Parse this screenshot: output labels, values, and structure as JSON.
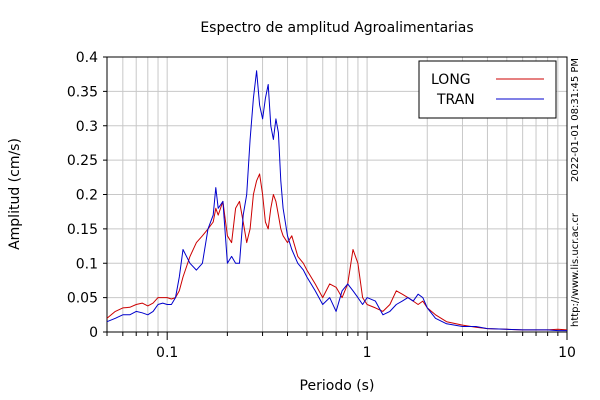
{
  "chart_data": {
    "type": "line",
    "title": "Espectro de amplitud Agroalimentarias",
    "xlabel": "Periodo (s)",
    "ylabel": "Amplitud (cm/s)",
    "x_scale": "log",
    "xlim": [
      0.05,
      10
    ],
    "ylim": [
      0,
      0.4
    ],
    "x_ticks": [
      0.1,
      1,
      10
    ],
    "x_tick_labels": [
      "0.1",
      "1",
      "10"
    ],
    "y_ticks": [
      0,
      0.05,
      0.1,
      0.15,
      0.2,
      0.25,
      0.3,
      0.35,
      0.4
    ],
    "y_tick_labels": [
      "0",
      "0.05",
      "0.1",
      "0.15",
      "0.2",
      "0.25",
      "0.3",
      "0.35",
      "0.4"
    ],
    "grid": true,
    "legend_position": "top-right",
    "side_labels": [
      "2022-01-01 08:31:45 PM",
      "http://www.lis.ucr.ac.cr"
    ],
    "series": [
      {
        "name": "LONG",
        "color": "#cc0000",
        "x": [
          0.05,
          0.055,
          0.06,
          0.065,
          0.07,
          0.075,
          0.08,
          0.085,
          0.09,
          0.095,
          0.1,
          0.105,
          0.11,
          0.115,
          0.12,
          0.13,
          0.14,
          0.15,
          0.16,
          0.17,
          0.175,
          0.18,
          0.19,
          0.2,
          0.21,
          0.22,
          0.23,
          0.24,
          0.25,
          0.26,
          0.27,
          0.28,
          0.29,
          0.3,
          0.31,
          0.32,
          0.33,
          0.34,
          0.35,
          0.36,
          0.37,
          0.38,
          0.4,
          0.42,
          0.45,
          0.48,
          0.5,
          0.55,
          0.6,
          0.65,
          0.7,
          0.75,
          0.8,
          0.85,
          0.9,
          0.95,
          1.0,
          1.1,
          1.2,
          1.3,
          1.4,
          1.5,
          1.6,
          1.7,
          1.8,
          1.9,
          2.0,
          2.2,
          2.5,
          3.0,
          3.5,
          4,
          5,
          6,
          7,
          8,
          9,
          10
        ],
        "values": [
          0.02,
          0.03,
          0.035,
          0.036,
          0.04,
          0.042,
          0.038,
          0.042,
          0.05,
          0.05,
          0.05,
          0.048,
          0.05,
          0.06,
          0.08,
          0.11,
          0.13,
          0.14,
          0.15,
          0.16,
          0.18,
          0.17,
          0.19,
          0.14,
          0.13,
          0.18,
          0.19,
          0.16,
          0.13,
          0.15,
          0.2,
          0.22,
          0.23,
          0.2,
          0.16,
          0.15,
          0.18,
          0.2,
          0.19,
          0.17,
          0.15,
          0.14,
          0.13,
          0.14,
          0.11,
          0.1,
          0.09,
          0.07,
          0.05,
          0.07,
          0.065,
          0.05,
          0.07,
          0.12,
          0.1,
          0.05,
          0.04,
          0.035,
          0.03,
          0.04,
          0.06,
          0.055,
          0.05,
          0.045,
          0.04,
          0.045,
          0.035,
          0.025,
          0.015,
          0.01,
          0.007,
          0.005,
          0.004,
          0.003,
          0.003,
          0.003,
          0.004,
          0.003
        ]
      },
      {
        "name": "TRAN",
        "color": "#0000cc",
        "x": [
          0.05,
          0.055,
          0.06,
          0.065,
          0.07,
          0.075,
          0.08,
          0.085,
          0.09,
          0.095,
          0.1,
          0.105,
          0.11,
          0.115,
          0.12,
          0.13,
          0.14,
          0.15,
          0.16,
          0.17,
          0.175,
          0.18,
          0.19,
          0.2,
          0.21,
          0.22,
          0.23,
          0.24,
          0.25,
          0.26,
          0.27,
          0.28,
          0.29,
          0.3,
          0.31,
          0.32,
          0.33,
          0.34,
          0.35,
          0.36,
          0.37,
          0.38,
          0.4,
          0.42,
          0.45,
          0.48,
          0.5,
          0.55,
          0.6,
          0.65,
          0.7,
          0.75,
          0.8,
          0.85,
          0.9,
          0.95,
          1.0,
          1.1,
          1.2,
          1.3,
          1.4,
          1.5,
          1.6,
          1.7,
          1.8,
          1.9,
          2.0,
          2.2,
          2.5,
          3.0,
          3.5,
          4,
          5,
          6,
          7,
          8,
          9,
          10
        ],
        "values": [
          0.015,
          0.02,
          0.025,
          0.025,
          0.03,
          0.028,
          0.025,
          0.03,
          0.04,
          0.042,
          0.04,
          0.04,
          0.05,
          0.08,
          0.12,
          0.1,
          0.09,
          0.1,
          0.15,
          0.17,
          0.21,
          0.18,
          0.19,
          0.1,
          0.11,
          0.1,
          0.1,
          0.17,
          0.2,
          0.28,
          0.34,
          0.38,
          0.33,
          0.31,
          0.34,
          0.36,
          0.3,
          0.28,
          0.31,
          0.29,
          0.22,
          0.18,
          0.14,
          0.12,
          0.1,
          0.09,
          0.08,
          0.06,
          0.04,
          0.05,
          0.03,
          0.06,
          0.07,
          0.06,
          0.05,
          0.04,
          0.05,
          0.045,
          0.025,
          0.03,
          0.04,
          0.045,
          0.05,
          0.045,
          0.055,
          0.05,
          0.035,
          0.02,
          0.012,
          0.008,
          0.008,
          0.005,
          0.004,
          0.003,
          0.003,
          0.003,
          0.002,
          0.002
        ]
      }
    ]
  }
}
